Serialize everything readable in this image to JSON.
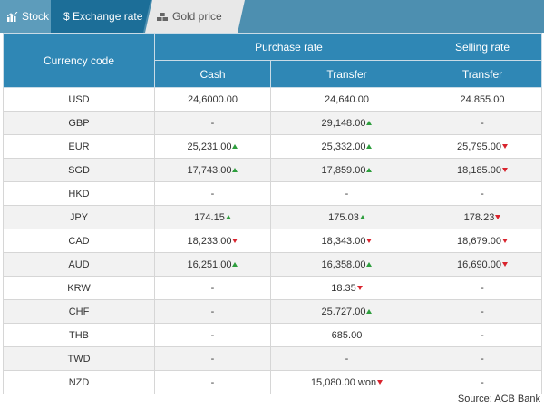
{
  "tabs": [
    {
      "label": "Stock",
      "icon": "chart-icon"
    },
    {
      "label": "$ Exchange rate",
      "icon": "dollar-icon"
    },
    {
      "label": "Gold price",
      "icon": "gold-bars-icon"
    }
  ],
  "table": {
    "headers": {
      "currency_code": "Currency code",
      "purchase_rate": "Purchase rate",
      "selling_rate": "Selling rate",
      "cash": "Cash",
      "transfer": "Transfer",
      "selling_transfer": "Transfer"
    },
    "rows": [
      {
        "code": "USD",
        "cash": "24,6000.00",
        "cash_trend": "",
        "transfer": "24,640.00",
        "transfer_trend": "",
        "sell": "24.855.00",
        "sell_trend": ""
      },
      {
        "code": "GBP",
        "cash": "-",
        "cash_trend": "",
        "transfer": "29,148.00",
        "transfer_trend": "up",
        "sell": "-",
        "sell_trend": ""
      },
      {
        "code": "EUR",
        "cash": "25,231.00",
        "cash_trend": "up",
        "transfer": "25,332.00",
        "transfer_trend": "up",
        "sell": "25,795.00",
        "sell_trend": "down"
      },
      {
        "code": "SGD",
        "cash": "17,743.00",
        "cash_trend": "up",
        "transfer": "17,859.00",
        "transfer_trend": "up",
        "sell": "18,185.00",
        "sell_trend": "down"
      },
      {
        "code": "HKD",
        "cash": "-",
        "cash_trend": "",
        "transfer": "-",
        "transfer_trend": "",
        "sell": "-",
        "sell_trend": ""
      },
      {
        "code": "JPY",
        "cash": "174.15",
        "cash_trend": "up",
        "transfer": "175.03",
        "transfer_trend": "up",
        "sell": "178.23",
        "sell_trend": "down"
      },
      {
        "code": "CAD",
        "cash": "18,233.00",
        "cash_trend": "down",
        "transfer": "18,343.00",
        "transfer_trend": "down",
        "sell": "18,679.00",
        "sell_trend": "down"
      },
      {
        "code": "AUD",
        "cash": "16,251.00",
        "cash_trend": "up",
        "transfer": "16,358.00",
        "transfer_trend": "up",
        "sell": "16,690.00",
        "sell_trend": "down"
      },
      {
        "code": "KRW",
        "cash": "-",
        "cash_trend": "",
        "transfer": "18.35",
        "transfer_trend": "down",
        "sell": "-",
        "sell_trend": ""
      },
      {
        "code": "CHF",
        "cash": "-",
        "cash_trend": "",
        "transfer": "25.727.00",
        "transfer_trend": "up",
        "sell": "-",
        "sell_trend": ""
      },
      {
        "code": "THB",
        "cash": "-",
        "cash_trend": "",
        "transfer": "685.00",
        "transfer_trend": "",
        "sell": "-",
        "sell_trend": ""
      },
      {
        "code": "TWD",
        "cash": "-",
        "cash_trend": "",
        "transfer": "-",
        "transfer_trend": "",
        "sell": "-",
        "sell_trend": ""
      },
      {
        "code": "NZD",
        "cash": "-",
        "cash_trend": "",
        "transfer": "15,080.00 won",
        "transfer_trend": "down",
        "sell": "-",
        "sell_trend": ""
      }
    ]
  },
  "source": "Source: ACB Bank",
  "colors": {
    "tab_active": "#1c6e98",
    "header": "#2f87b5",
    "up": "#2e9e3e",
    "down": "#d9232d"
  }
}
